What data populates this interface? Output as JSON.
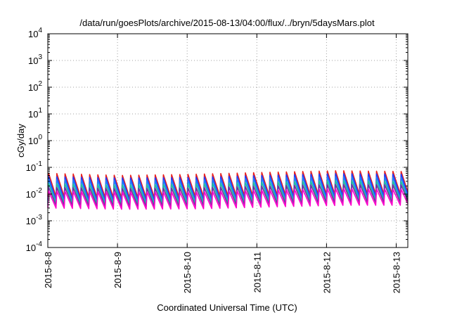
{
  "chart_data": {
    "type": "line",
    "title": "/data/run/goesPlots/archive/2015-08-13/04:00/flux/../bryn/5daysMars.plot",
    "xlabel": "Coordinated Universal Time (UTC)",
    "ylabel": "cGy/day",
    "y_scale": "log",
    "ylim": [
      0.0001,
      10000
    ],
    "xlim": [
      "2015-08-08T00:00",
      "2015-08-13T04:00"
    ],
    "y_ticks": [
      {
        "base": "10",
        "exp": "-4",
        "value": 0.0001
      },
      {
        "base": "10",
        "exp": "-3",
        "value": 0.001
      },
      {
        "base": "10",
        "exp": "-2",
        "value": 0.01
      },
      {
        "base": "10",
        "exp": "-1",
        "value": 0.1
      },
      {
        "base": "10",
        "exp": "0",
        "value": 1
      },
      {
        "base": "10",
        "exp": "1",
        "value": 10
      },
      {
        "base": "10",
        "exp": "2",
        "value": 100
      },
      {
        "base": "10",
        "exp": "3",
        "value": 1000
      },
      {
        "base": "10",
        "exp": "4",
        "value": 10000
      }
    ],
    "x_ticks": [
      {
        "label": "2015-8-8",
        "value": "2015-08-08T00:00"
      },
      {
        "label": "2015-8-9",
        "value": "2015-08-09T00:00"
      },
      {
        "label": "2015-8-10",
        "value": "2015-08-10T00:00"
      },
      {
        "label": "2015-8-11",
        "value": "2015-08-11T00:00"
      },
      {
        "label": "2015-8-12",
        "value": "2015-08-12T00:00"
      },
      {
        "label": "2015-8-13",
        "value": "2015-08-13T00:00"
      }
    ],
    "grid": true,
    "pattern": "sawtooth",
    "cycles_per_day": 8.5,
    "series": [
      {
        "color": "#e8201f",
        "peak": [
          0.06,
          0.05,
          0.055,
          0.065,
          0.075,
          0.07
        ],
        "trough": [
          0.008,
          0.007,
          0.008,
          0.009,
          0.01,
          0.01
        ]
      },
      {
        "color": "#1e3cff",
        "peak": [
          0.045,
          0.04,
          0.042,
          0.05,
          0.058,
          0.055
        ],
        "trough": [
          0.006,
          0.0055,
          0.006,
          0.007,
          0.008,
          0.008
        ]
      },
      {
        "color": "#2080ff",
        "peak": [
          0.035,
          0.032,
          0.033,
          0.04,
          0.045,
          0.042
        ],
        "trough": [
          0.005,
          0.0045,
          0.005,
          0.0058,
          0.0065,
          0.0065
        ]
      },
      {
        "color": "#20c0a0",
        "peak": [
          0.025,
          0.022,
          0.024,
          0.028,
          0.032,
          0.03
        ],
        "trough": [
          0.0045,
          0.004,
          0.0045,
          0.005,
          0.0055,
          0.0055
        ]
      },
      {
        "color": "#7030a0",
        "peak": [
          0.018,
          0.016,
          0.017,
          0.02,
          0.023,
          0.022
        ],
        "trough": [
          0.0038,
          0.0034,
          0.0036,
          0.0042,
          0.0048,
          0.0048
        ]
      },
      {
        "color": "#ff00cc",
        "peak": [
          0.013,
          0.012,
          0.012,
          0.014,
          0.016,
          0.015
        ],
        "trough": [
          0.003,
          0.0027,
          0.0028,
          0.0033,
          0.0038,
          0.0038
        ]
      }
    ]
  }
}
